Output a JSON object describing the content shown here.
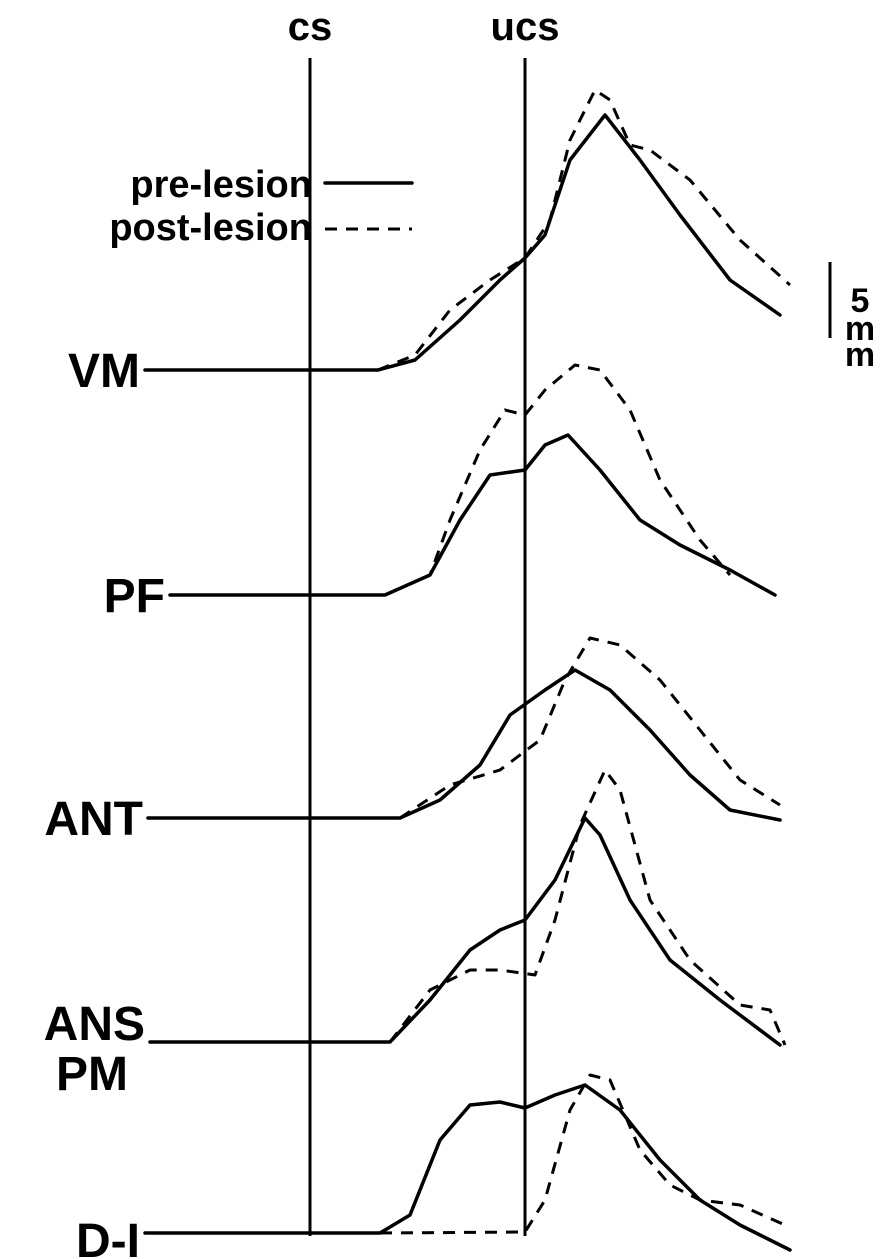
{
  "markers": {
    "cs": "cs",
    "ucs": "ucs"
  },
  "legend": {
    "pre": "pre-lesion",
    "post": "post-lesion"
  },
  "scale": [
    "5",
    "m",
    "m"
  ],
  "traces": [
    "VM",
    "PF",
    "ANT",
    "ANS",
    "PM",
    "D-I"
  ]
}
